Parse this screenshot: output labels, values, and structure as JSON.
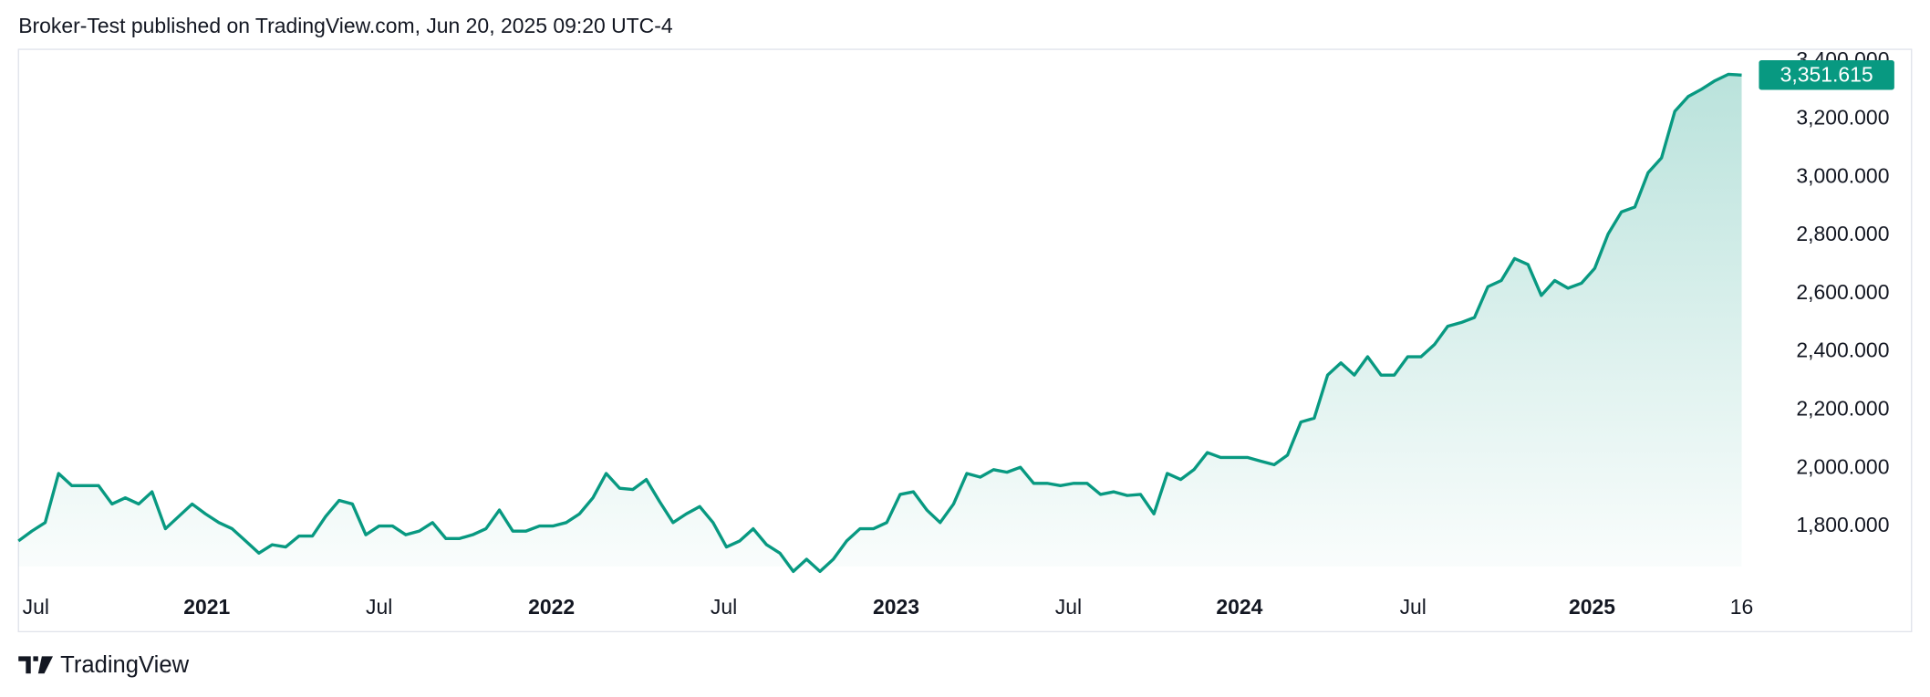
{
  "header": "Broker-Test published on TradingView.com, Jun 20, 2025 09:20 UTC-4",
  "footer": "TradingView",
  "chart_data": {
    "type": "area",
    "color": "#089981",
    "values": [
      1750,
      1784,
      1813,
      1982,
      1940,
      1940,
      1940,
      1877,
      1898,
      1877,
      1919,
      1792,
      1834,
      1877,
      1843,
      1813,
      1792,
      1750,
      1708,
      1737,
      1729,
      1767,
      1767,
      1834,
      1889,
      1877,
      1771,
      1801,
      1801,
      1771,
      1784,
      1813,
      1758,
      1758,
      1771,
      1792,
      1856,
      1784,
      1784,
      1801,
      1801,
      1813,
      1843,
      1898,
      1982,
      1931,
      1927,
      1961,
      1885,
      1813,
      1843,
      1868,
      1813,
      1729,
      1750,
      1792,
      1737,
      1708,
      1645,
      1687,
      1645,
      1687,
      1750,
      1792,
      1792,
      1813,
      1910,
      1919,
      1856,
      1813,
      1877,
      1982,
      1969,
      1995,
      1986,
      2003,
      1948,
      1948,
      1940,
      1948,
      1948,
      1910,
      1919,
      1906,
      1910,
      1843,
      1982,
      1961,
      1995,
      2054,
      2037,
      2037,
      2037,
      2024,
      2012,
      2045,
      2159,
      2172,
      2320,
      2362,
      2320,
      2383,
      2320,
      2320,
      2383,
      2383,
      2425,
      2488,
      2501,
      2518,
      2624,
      2645,
      2721,
      2700,
      2594,
      2645,
      2619,
      2636,
      2687,
      2805,
      2881,
      2898,
      3016,
      3067,
      3227,
      3278,
      3303,
      3332,
      3354,
      3351.615
    ],
    "last_value_label": "3,351.615",
    "xlim": [
      0,
      129
    ],
    "xticks": [
      {
        "value": 1.3,
        "label": "Jul"
      },
      {
        "value": 14.1,
        "label": "2021"
      },
      {
        "value": 27,
        "label": "Jul"
      },
      {
        "value": 39.9,
        "label": "2022"
      },
      {
        "value": 52.8,
        "label": "Jul"
      },
      {
        "value": 65.7,
        "label": "2023"
      },
      {
        "value": 78.6,
        "label": "Jul"
      },
      {
        "value": 91.4,
        "label": "2024"
      },
      {
        "value": 104.4,
        "label": "Jul"
      },
      {
        "value": 117.8,
        "label": "2025"
      },
      {
        "value": 129,
        "label": "16"
      }
    ],
    "ylim": [
      1620,
      3440
    ],
    "yticks": [
      {
        "value": 1800,
        "label": "1,800.000"
      },
      {
        "value": 2000,
        "label": "2,000.000"
      },
      {
        "value": 2200,
        "label": "2,200.000"
      },
      {
        "value": 2400,
        "label": "2,400.000"
      },
      {
        "value": 2600,
        "label": "2,600.000"
      },
      {
        "value": 2800,
        "label": "2,800.000"
      },
      {
        "value": 3000,
        "label": "3,000.000"
      },
      {
        "value": 3200,
        "label": "3,200.000"
      },
      {
        "value": 3400,
        "label": "3,400.000"
      }
    ]
  }
}
